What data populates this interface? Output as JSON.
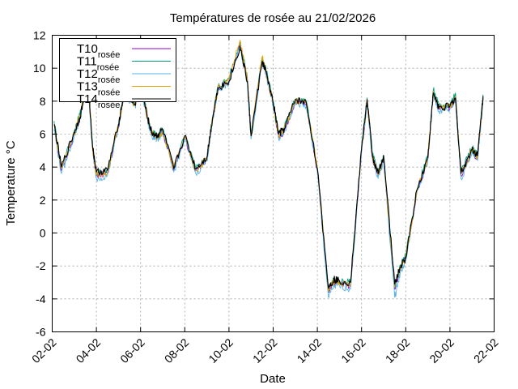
{
  "chart_data": {
    "type": "line",
    "title": "Températures de rosée au 21/02/2026",
    "xlabel": "Date",
    "ylabel": "Temperature °C",
    "ylim": [
      -6,
      12
    ],
    "yticks": [
      "-6",
      "-4",
      "-2",
      "0",
      "2",
      "4",
      "6",
      "8",
      "10",
      "12"
    ],
    "xlim": [
      "02-02",
      "22-02"
    ],
    "xticks": [
      "02-02",
      "04-02",
      "06-02",
      "08-02",
      "10-02",
      "12-02",
      "14-02",
      "16-02",
      "18-02",
      "20-02",
      "22-02"
    ],
    "grid": true,
    "legend_position": "top-left",
    "x": [
      "02-02",
      "02-10",
      "03-00",
      "03-06",
      "03-12",
      "03-16",
      "03-20",
      "04-00",
      "04-12",
      "05-00",
      "05-06",
      "05-18",
      "06-00",
      "06-08",
      "06-12",
      "06-18",
      "07-00",
      "07-12",
      "08-00",
      "08-12",
      "09-00",
      "09-06",
      "09-12",
      "10-00",
      "10-12",
      "10-20",
      "11-00",
      "11-12",
      "11-16",
      "12-00",
      "12-06",
      "12-12",
      "13-00",
      "13-12",
      "14-00",
      "14-12",
      "14-18",
      "15-00",
      "15-12",
      "16-00",
      "16-06",
      "16-12",
      "16-18",
      "17-00",
      "17-12",
      "17-18",
      "18-00",
      "18-12",
      "19-00",
      "19-06",
      "19-12",
      "20-00",
      "20-06",
      "20-12",
      "21-00",
      "21-06",
      "21-12"
    ],
    "series": [
      {
        "name": "T10",
        "sub": "rosée",
        "color": "#9400d3",
        "values": [
          6.5,
          3.8,
          6.0,
          7.0,
          8.5,
          8.2,
          5.0,
          3.5,
          3.6,
          6.5,
          8.5,
          7.8,
          9.0,
          6.8,
          6.0,
          5.8,
          6.2,
          3.8,
          5.8,
          3.8,
          4.5,
          6.8,
          8.8,
          9.2,
          11.4,
          9.2,
          5.8,
          10.5,
          9.8,
          7.8,
          5.8,
          6.2,
          8.0,
          7.8,
          3.8,
          -3.6,
          -3.0,
          -3.0,
          -3.2,
          5.0,
          8.0,
          4.5,
          3.5,
          4.5,
          -3.4,
          -2.2,
          -1.5,
          2.5,
          4.5,
          8.5,
          7.5,
          7.6,
          8.2,
          3.5,
          5.0,
          4.5,
          8.2
        ]
      },
      {
        "name": "T11",
        "sub": "rosée",
        "color": "#009e73",
        "values": [
          6.8,
          4.0,
          6.2,
          7.2,
          8.6,
          8.4,
          5.2,
          3.6,
          3.8,
          6.6,
          8.6,
          7.9,
          9.2,
          6.9,
          6.2,
          5.9,
          6.3,
          4.0,
          5.9,
          3.9,
          4.6,
          7.0,
          8.9,
          9.4,
          11.6,
          9.4,
          6.0,
          10.6,
          10.0,
          8.0,
          6.0,
          6.4,
          8.1,
          8.0,
          4.0,
          -3.4,
          -2.8,
          -2.9,
          -3.0,
          5.2,
          8.2,
          4.7,
          3.7,
          4.6,
          -3.2,
          -2.0,
          -1.4,
          2.6,
          4.7,
          8.7,
          7.7,
          7.8,
          8.5,
          3.8,
          5.2,
          4.7,
          8.4
        ]
      },
      {
        "name": "T12",
        "sub": "rosée",
        "color": "#56b4e9",
        "values": [
          6.3,
          3.6,
          5.9,
          6.9,
          8.4,
          8.1,
          4.9,
          3.3,
          3.5,
          6.4,
          8.4,
          7.7,
          8.9,
          6.7,
          5.9,
          5.7,
          6.1,
          3.7,
          5.7,
          3.6,
          4.4,
          6.7,
          8.7,
          9.1,
          11.3,
          9.1,
          5.7,
          10.4,
          9.7,
          7.7,
          5.7,
          6.1,
          7.9,
          7.7,
          3.7,
          -3.9,
          -3.2,
          -3.2,
          -3.4,
          4.9,
          7.9,
          4.4,
          3.3,
          4.4,
          -3.9,
          -2.4,
          -1.7,
          2.4,
          4.4,
          8.4,
          7.4,
          7.5,
          8.1,
          3.3,
          4.9,
          4.4,
          8.1
        ]
      },
      {
        "name": "T13",
        "sub": "rosée",
        "color": "#e69f00",
        "values": [
          6.6,
          3.9,
          6.1,
          7.1,
          8.7,
          8.3,
          5.1,
          3.5,
          3.7,
          6.5,
          8.5,
          7.8,
          9.1,
          6.8,
          6.1,
          5.8,
          6.2,
          3.9,
          5.8,
          3.8,
          4.5,
          6.9,
          8.8,
          9.3,
          11.7,
          9.3,
          5.9,
          10.7,
          9.9,
          7.9,
          5.9,
          6.3,
          8.0,
          7.9,
          3.9,
          -3.5,
          -2.9,
          -3.0,
          -3.1,
          5.1,
          8.1,
          4.6,
          3.6,
          4.5,
          -3.3,
          -2.1,
          -1.5,
          2.5,
          4.6,
          8.6,
          7.6,
          7.7,
          8.3,
          3.6,
          5.1,
          4.6,
          8.3
        ]
      },
      {
        "name": "T14",
        "sub": "rosée",
        "color": "#000000",
        "values": [
          6.6,
          4.0,
          6.1,
          7.0,
          8.6,
          8.3,
          5.2,
          3.7,
          3.8,
          6.6,
          8.5,
          7.8,
          9.0,
          6.9,
          6.1,
          5.9,
          6.3,
          3.9,
          5.9,
          3.9,
          4.6,
          6.9,
          8.8,
          9.2,
          11.3,
          9.2,
          5.9,
          10.4,
          9.8,
          7.9,
          6.0,
          6.3,
          8.1,
          7.9,
          3.9,
          -3.3,
          -2.8,
          -2.9,
          -3.0,
          5.1,
          8.1,
          4.6,
          3.6,
          4.7,
          -3.1,
          -2.1,
          -1.5,
          2.6,
          4.6,
          8.5,
          7.6,
          7.7,
          8.2,
          3.6,
          5.1,
          4.7,
          8.3
        ]
      }
    ]
  }
}
